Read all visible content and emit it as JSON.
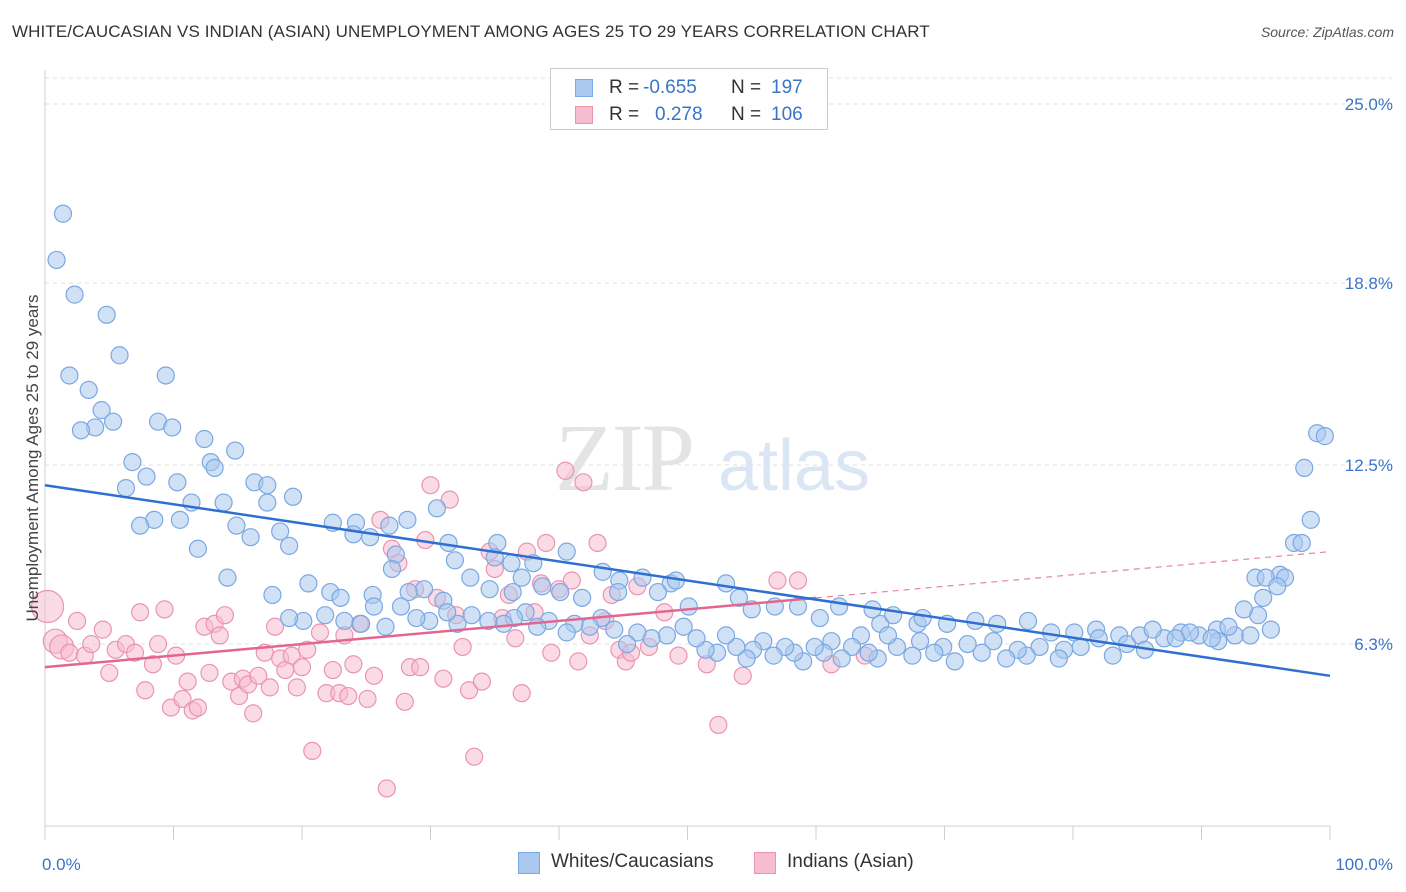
{
  "title": "WHITE/CAUCASIAN VS INDIAN (ASIAN) UNEMPLOYMENT AMONG AGES 25 TO 29 YEARS CORRELATION CHART",
  "source": "Source: ZipAtlas.com",
  "watermark": {
    "zip": "ZIP",
    "atlas": "atlas"
  },
  "legend": {
    "rows": [
      {
        "r_label": "R =",
        "r_value": "-0.655",
        "n_label": "N =",
        "n_value": "197"
      },
      {
        "r_label": "R =",
        "r_value": "0.278",
        "n_label": "N =",
        "n_value": "106"
      }
    ]
  },
  "bottom_legend": [
    "Whites/Caucasians",
    "Indians (Asian)"
  ],
  "colors": {
    "blue_fill": "#aac8ee",
    "blue_stroke": "#7aa8e2",
    "blue_line": "#2e6fcf",
    "pink_fill": "#f6bcd0",
    "pink_stroke": "#eb94b2",
    "pink_line": "#e2668f",
    "grid": "#e2e2e2",
    "axis_text": "#3a74c9"
  },
  "chart_data": {
    "type": "scatter",
    "title": "WHITE/CAUCASIAN VS INDIAN (ASIAN) UNEMPLOYMENT AMONG AGES 25 TO 29 YEARS CORRELATION CHART",
    "xlabel": "",
    "ylabel": "Unemployment Among Ages 25 to 29 years",
    "xlim": [
      0,
      100
    ],
    "ylim": [
      0,
      25.9
    ],
    "y_ticks": [
      6.3,
      12.5,
      18.8,
      25.0
    ],
    "y_tick_labels": [
      "6.3%",
      "12.5%",
      "18.8%",
      "25.0%"
    ],
    "x_tick_labels": [
      "0.0%",
      "100.0%"
    ],
    "grid": true,
    "series": [
      {
        "name": "Whites/Caucasians",
        "r": -0.655,
        "n": 197,
        "trend": {
          "x": [
            0,
            100
          ],
          "y": [
            11.8,
            5.2
          ]
        },
        "points": [
          [
            1.4,
            21.2
          ],
          [
            0.9,
            19.6
          ],
          [
            2.3,
            18.4
          ],
          [
            4.8,
            17.7
          ],
          [
            5.8,
            16.3
          ],
          [
            1.9,
            15.6
          ],
          [
            9.4,
            15.6
          ],
          [
            3.4,
            15.1
          ],
          [
            4.4,
            14.4
          ],
          [
            5.3,
            14.0
          ],
          [
            8.8,
            14.0
          ],
          [
            3.9,
            13.8
          ],
          [
            2.8,
            13.7
          ],
          [
            9.9,
            13.8
          ],
          [
            12.4,
            13.4
          ],
          [
            14.8,
            13.0
          ],
          [
            6.8,
            12.6
          ],
          [
            12.9,
            12.6
          ],
          [
            13.2,
            12.4
          ],
          [
            7.9,
            12.1
          ],
          [
            10.3,
            11.9
          ],
          [
            16.3,
            11.9
          ],
          [
            6.3,
            11.7
          ],
          [
            17.3,
            11.8
          ],
          [
            11.4,
            11.2
          ],
          [
            13.9,
            11.2
          ],
          [
            19.3,
            11.4
          ],
          [
            17.3,
            11.2
          ],
          [
            10.5,
            10.6
          ],
          [
            8.5,
            10.6
          ],
          [
            7.4,
            10.4
          ],
          [
            14.9,
            10.4
          ],
          [
            22.4,
            10.5
          ],
          [
            24.2,
            10.5
          ],
          [
            26.8,
            10.4
          ],
          [
            28.2,
            10.6
          ],
          [
            18.3,
            10.2
          ],
          [
            24.0,
            10.1
          ],
          [
            16.0,
            10.0
          ],
          [
            25.3,
            10.0
          ],
          [
            19.0,
            9.7
          ],
          [
            11.9,
            9.6
          ],
          [
            30.5,
            11.0
          ],
          [
            31.4,
            9.8
          ],
          [
            35.2,
            9.8
          ],
          [
            31.9,
            9.2
          ],
          [
            27.3,
            9.4
          ],
          [
            36.3,
            9.1
          ],
          [
            27.0,
            8.9
          ],
          [
            29.5,
            8.2
          ],
          [
            35.0,
            9.3
          ],
          [
            38.0,
            9.1
          ],
          [
            40.6,
            9.5
          ],
          [
            43.4,
            8.8
          ],
          [
            44.7,
            8.5
          ],
          [
            46.5,
            8.6
          ],
          [
            48.7,
            8.4
          ],
          [
            14.2,
            8.6
          ],
          [
            17.7,
            8.0
          ],
          [
            20.5,
            8.4
          ],
          [
            22.2,
            8.1
          ],
          [
            23.0,
            7.9
          ],
          [
            25.5,
            8.0
          ],
          [
            28.3,
            8.1
          ],
          [
            31.0,
            7.8
          ],
          [
            33.1,
            8.6
          ],
          [
            34.6,
            8.2
          ],
          [
            36.4,
            8.1
          ],
          [
            37.1,
            8.6
          ],
          [
            38.7,
            8.3
          ],
          [
            40.1,
            8.1
          ],
          [
            41.8,
            7.9
          ],
          [
            44.6,
            8.1
          ],
          [
            47.7,
            8.1
          ],
          [
            49.1,
            8.5
          ],
          [
            50.1,
            7.6
          ],
          [
            53.0,
            8.4
          ],
          [
            54.0,
            7.9
          ],
          [
            55.0,
            7.5
          ],
          [
            56.8,
            7.6
          ],
          [
            58.6,
            7.6
          ],
          [
            60.3,
            7.2
          ],
          [
            61.8,
            7.6
          ],
          [
            64.4,
            7.5
          ],
          [
            65.0,
            7.0
          ],
          [
            66.0,
            7.3
          ],
          [
            67.9,
            7.0
          ],
          [
            68.3,
            7.2
          ],
          [
            70.2,
            7.0
          ],
          [
            72.4,
            7.1
          ],
          [
            74.1,
            7.0
          ],
          [
            76.5,
            7.1
          ],
          [
            78.3,
            6.7
          ],
          [
            80.1,
            6.7
          ],
          [
            81.8,
            6.8
          ],
          [
            83.6,
            6.6
          ],
          [
            85.2,
            6.6
          ],
          [
            87.1,
            6.5
          ],
          [
            88.4,
            6.7
          ],
          [
            89.8,
            6.6
          ],
          [
            91.2,
            6.8
          ],
          [
            92.6,
            6.6
          ],
          [
            93.8,
            6.6
          ],
          [
            95.4,
            6.8
          ],
          [
            96.1,
            8.7
          ],
          [
            97.2,
            9.8
          ],
          [
            98.5,
            10.6
          ],
          [
            99.0,
            13.6
          ],
          [
            99.6,
            13.5
          ],
          [
            98.0,
            12.4
          ],
          [
            97.8,
            9.8
          ],
          [
            94.8,
            7.9
          ],
          [
            94.2,
            8.6
          ],
          [
            95.0,
            8.6
          ],
          [
            96.5,
            8.6
          ],
          [
            95.9,
            8.3
          ],
          [
            94.4,
            7.3
          ],
          [
            93.3,
            7.5
          ],
          [
            92.1,
            6.9
          ],
          [
            91.3,
            6.4
          ],
          [
            90.8,
            6.5
          ],
          [
            89.1,
            6.7
          ],
          [
            88.0,
            6.5
          ],
          [
            86.2,
            6.8
          ],
          [
            85.6,
            6.1
          ],
          [
            84.2,
            6.3
          ],
          [
            83.1,
            5.9
          ],
          [
            82.0,
            6.5
          ],
          [
            80.6,
            6.2
          ],
          [
            79.3,
            6.1
          ],
          [
            78.9,
            5.8
          ],
          [
            77.4,
            6.2
          ],
          [
            76.4,
            5.9
          ],
          [
            75.7,
            6.1
          ],
          [
            74.8,
            5.8
          ],
          [
            73.8,
            6.4
          ],
          [
            72.9,
            6.0
          ],
          [
            71.8,
            6.3
          ],
          [
            70.8,
            5.7
          ],
          [
            69.9,
            6.2
          ],
          [
            69.2,
            6.0
          ],
          [
            68.1,
            6.4
          ],
          [
            67.5,
            5.9
          ],
          [
            66.3,
            6.2
          ],
          [
            65.6,
            6.6
          ],
          [
            64.8,
            5.8
          ],
          [
            64.1,
            6.0
          ],
          [
            63.5,
            6.6
          ],
          [
            62.8,
            6.2
          ],
          [
            62.0,
            5.8
          ],
          [
            61.2,
            6.4
          ],
          [
            60.6,
            6.0
          ],
          [
            59.9,
            6.2
          ],
          [
            59.0,
            5.7
          ],
          [
            58.3,
            6.0
          ],
          [
            57.6,
            6.2
          ],
          [
            56.7,
            5.9
          ],
          [
            55.9,
            6.4
          ],
          [
            55.1,
            6.1
          ],
          [
            54.6,
            5.8
          ],
          [
            53.8,
            6.2
          ],
          [
            53.0,
            6.6
          ],
          [
            52.3,
            6.0
          ],
          [
            51.4,
            6.1
          ],
          [
            50.7,
            6.5
          ],
          [
            49.7,
            6.9
          ],
          [
            48.4,
            6.6
          ],
          [
            47.2,
            6.5
          ],
          [
            46.1,
            6.7
          ],
          [
            45.3,
            6.3
          ],
          [
            44.3,
            6.8
          ],
          [
            43.3,
            7.2
          ],
          [
            42.4,
            6.9
          ],
          [
            41.2,
            7.0
          ],
          [
            40.6,
            6.7
          ],
          [
            39.2,
            7.1
          ],
          [
            38.3,
            6.9
          ],
          [
            37.4,
            7.4
          ],
          [
            36.5,
            7.2
          ],
          [
            35.7,
            7.0
          ],
          [
            34.5,
            7.1
          ],
          [
            33.2,
            7.3
          ],
          [
            32.1,
            7.0
          ],
          [
            31.3,
            7.4
          ],
          [
            29.9,
            7.1
          ],
          [
            28.9,
            7.2
          ],
          [
            27.7,
            7.6
          ],
          [
            26.5,
            6.9
          ],
          [
            25.6,
            7.6
          ],
          [
            24.6,
            7.0
          ],
          [
            23.3,
            7.1
          ],
          [
            21.8,
            7.3
          ],
          [
            20.1,
            7.1
          ],
          [
            19.0,
            7.2
          ]
        ]
      },
      {
        "name": "Indians (Asian)",
        "r": 0.278,
        "n": 106,
        "trend": {
          "x": [
            0,
            60
          ],
          "y": [
            5.5,
            7.9
          ]
        },
        "trend_dashed": {
          "x": [
            60,
            100
          ],
          "y": [
            7.9,
            9.5
          ]
        },
        "points": [
          [
            0.2,
            7.6
          ],
          [
            0.8,
            6.4
          ],
          [
            1.3,
            6.2
          ],
          [
            1.9,
            6.0
          ],
          [
            2.5,
            7.1
          ],
          [
            3.1,
            5.9
          ],
          [
            3.6,
            6.3
          ],
          [
            4.5,
            6.8
          ],
          [
            5.0,
            5.3
          ],
          [
            5.5,
            6.1
          ],
          [
            6.3,
            6.3
          ],
          [
            7.0,
            6.0
          ],
          [
            7.4,
            7.4
          ],
          [
            7.8,
            4.7
          ],
          [
            8.4,
            5.6
          ],
          [
            8.8,
            6.3
          ],
          [
            9.3,
            7.5
          ],
          [
            9.8,
            4.1
          ],
          [
            10.2,
            5.9
          ],
          [
            10.7,
            4.4
          ],
          [
            11.1,
            5.0
          ],
          [
            11.5,
            4.0
          ],
          [
            11.9,
            4.1
          ],
          [
            12.4,
            6.9
          ],
          [
            12.8,
            5.3
          ],
          [
            13.2,
            7.0
          ],
          [
            13.6,
            6.6
          ],
          [
            14.0,
            7.3
          ],
          [
            14.5,
            5.0
          ],
          [
            15.1,
            4.5
          ],
          [
            15.4,
            5.1
          ],
          [
            15.8,
            4.9
          ],
          [
            16.2,
            3.9
          ],
          [
            16.6,
            5.2
          ],
          [
            17.1,
            6.0
          ],
          [
            17.5,
            4.8
          ],
          [
            17.9,
            6.9
          ],
          [
            18.3,
            5.8
          ],
          [
            18.7,
            5.4
          ],
          [
            19.2,
            5.9
          ],
          [
            19.6,
            4.8
          ],
          [
            20.0,
            5.5
          ],
          [
            20.4,
            6.1
          ],
          [
            20.8,
            2.6
          ],
          [
            21.4,
            6.7
          ],
          [
            21.9,
            4.6
          ],
          [
            22.4,
            5.4
          ],
          [
            22.9,
            4.6
          ],
          [
            23.3,
            6.6
          ],
          [
            23.6,
            4.5
          ],
          [
            24.0,
            5.6
          ],
          [
            24.5,
            7.0
          ],
          [
            25.1,
            4.4
          ],
          [
            25.6,
            5.2
          ],
          [
            26.1,
            10.6
          ],
          [
            26.6,
            1.3
          ],
          [
            27.0,
            9.6
          ],
          [
            27.5,
            9.1
          ],
          [
            28.0,
            4.3
          ],
          [
            28.4,
            5.5
          ],
          [
            28.8,
            8.2
          ],
          [
            29.2,
            5.5
          ],
          [
            29.6,
            9.9
          ],
          [
            30.0,
            11.8
          ],
          [
            30.5,
            7.9
          ],
          [
            31.0,
            5.1
          ],
          [
            31.5,
            11.3
          ],
          [
            32.0,
            7.3
          ],
          [
            32.5,
            6.2
          ],
          [
            33.0,
            4.7
          ],
          [
            33.4,
            2.4
          ],
          [
            34.0,
            5.0
          ],
          [
            34.6,
            9.5
          ],
          [
            35.0,
            8.9
          ],
          [
            35.6,
            7.2
          ],
          [
            36.1,
            8.0
          ],
          [
            36.6,
            6.5
          ],
          [
            37.1,
            4.6
          ],
          [
            37.5,
            9.5
          ],
          [
            38.1,
            7.4
          ],
          [
            38.6,
            8.4
          ],
          [
            39.0,
            9.8
          ],
          [
            39.4,
            6.0
          ],
          [
            40.0,
            8.2
          ],
          [
            40.5,
            12.3
          ],
          [
            41.0,
            8.5
          ],
          [
            41.5,
            5.7
          ],
          [
            41.9,
            11.9
          ],
          [
            42.4,
            6.6
          ],
          [
            43.0,
            9.8
          ],
          [
            43.6,
            7.1
          ],
          [
            44.1,
            8.0
          ],
          [
            44.7,
            6.1
          ],
          [
            45.2,
            5.7
          ],
          [
            45.6,
            6.0
          ],
          [
            46.1,
            8.3
          ],
          [
            47.0,
            6.2
          ],
          [
            48.2,
            7.4
          ],
          [
            49.3,
            5.9
          ],
          [
            51.5,
            5.6
          ],
          [
            52.4,
            3.5
          ],
          [
            54.3,
            5.2
          ],
          [
            57.0,
            8.5
          ],
          [
            58.6,
            8.5
          ],
          [
            61.2,
            5.6
          ],
          [
            63.8,
            5.9
          ]
        ]
      }
    ]
  }
}
